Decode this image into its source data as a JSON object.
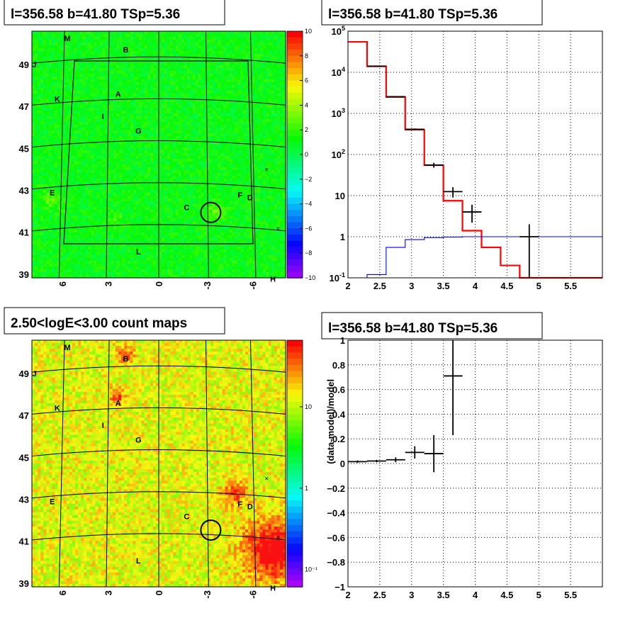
{
  "chart_data": [
    {
      "id": "tsmap",
      "type": "heatmap",
      "title": "l=356.58 b=41.80 TSp=5.36",
      "x_ticks": [
        "6",
        "3",
        "0",
        "-3",
        "-6"
      ],
      "y_ticks": [
        "39",
        "41",
        "43",
        "45",
        "47",
        "49"
      ],
      "colorbar_ticks": [
        "10",
        "8",
        "6",
        "4",
        "2",
        "0",
        "−2",
        "−4",
        "−6",
        "−8",
        "−10"
      ],
      "zlim": [
        -10,
        10
      ],
      "sources": [
        "M",
        "B",
        "J",
        "K",
        "A",
        "I",
        "G",
        "E",
        "F",
        "D",
        "C",
        "L",
        "H"
      ]
    },
    {
      "id": "spectrum",
      "type": "line",
      "title": "l=356.58 b=41.80 TSp=5.36",
      "x_ticks": [
        "2",
        "2.5",
        "3",
        "3.5",
        "4",
        "4.5",
        "5",
        "5.5"
      ],
      "y_ticks": [
        "10^-1",
        "1",
        "10",
        "10^2",
        "10^3",
        "10^4",
        "10^5"
      ],
      "xlim": [
        2,
        6
      ],
      "ylim": [
        0.1,
        100000
      ],
      "y_scale": "log",
      "grid": true,
      "series": [
        {
          "color": "#ff0000",
          "style": "step",
          "edges": [
            2.0,
            2.3,
            2.6,
            2.9,
            3.2,
            3.5,
            3.8,
            4.1,
            4.4,
            4.7,
            5.0,
            5.3,
            5.6,
            6.0
          ],
          "values": [
            55000,
            14000,
            2500,
            400,
            55,
            7.5,
            1.4,
            0.55,
            0.2,
            0.1,
            0.1,
            0.1,
            0.1
          ]
        },
        {
          "color": "#0000ff",
          "style": "step",
          "edges": [
            2.0,
            2.3,
            2.6,
            2.9,
            3.2,
            3.5,
            3.8,
            4.1,
            4.4,
            4.7,
            5.0,
            5.3,
            5.6,
            6.0
          ],
          "values": [
            0.09,
            0.12,
            0.55,
            0.85,
            0.95,
            0.98,
            1.0,
            1.0,
            1.0,
            1.0,
            1.0,
            1.0,
            1.0
          ]
        },
        {
          "color": "#000000",
          "style": "errorbar",
          "points": [
            {
              "x": 2.45,
              "xerr": 0.15,
              "y": 14000,
              "ylo": 13500,
              "yhi": 14500
            },
            {
              "x": 2.75,
              "xerr": 0.15,
              "y": 2550,
              "ylo": 2450,
              "yhi": 2650
            },
            {
              "x": 3.05,
              "xerr": 0.15,
              "y": 410,
              "ylo": 390,
              "yhi": 430
            },
            {
              "x": 3.35,
              "xerr": 0.15,
              "y": 55,
              "ylo": 48,
              "yhi": 63
            },
            {
              "x": 3.65,
              "xerr": 0.15,
              "y": 12.5,
              "ylo": 9,
              "yhi": 16
            },
            {
              "x": 3.95,
              "xerr": 0.15,
              "y": 4,
              "ylo": 2.2,
              "yhi": 6
            },
            {
              "x": 4.85,
              "xerr": 0.15,
              "y": 1,
              "ylo": 0.1,
              "yhi": 2
            }
          ]
        }
      ]
    },
    {
      "id": "countmap",
      "type": "heatmap",
      "title": "2.50<logE<3.00 count maps",
      "x_ticks": [
        "6",
        "3",
        "0",
        "-3",
        "-6"
      ],
      "y_ticks": [
        "39",
        "41",
        "43",
        "45",
        "47",
        "49"
      ],
      "colorbar_ticks": [
        "10",
        "1",
        "10⁻¹"
      ],
      "sources": [
        "M",
        "B",
        "J",
        "K",
        "A",
        "I",
        "G",
        "E",
        "F",
        "D",
        "C",
        "L",
        "H"
      ]
    },
    {
      "id": "residuals",
      "type": "scatter",
      "title": "l=356.58 b=41.80 TSp=5.36",
      "ylabel": "(data-model)/model",
      "x_ticks": [
        "2",
        "2.5",
        "3",
        "3.5",
        "4",
        "4.5",
        "5",
        "5.5"
      ],
      "y_ticks": [
        "1",
        "0.8",
        "0.6",
        "0.4",
        "0.2",
        "0",
        "−0.2",
        "−0.4",
        "−0.6",
        "−0.8",
        "−1"
      ],
      "xlim": [
        2,
        6
      ],
      "ylim": [
        -1,
        1
      ],
      "grid": true,
      "points": [
        {
          "x": 2.15,
          "xerr": 0.15,
          "y": 0.015,
          "ylo": 0.005,
          "yhi": 0.025
        },
        {
          "x": 2.45,
          "xerr": 0.15,
          "y": 0.02,
          "ylo": 0.01,
          "yhi": 0.03
        },
        {
          "x": 2.75,
          "xerr": 0.15,
          "y": 0.03,
          "ylo": 0.01,
          "yhi": 0.05
        },
        {
          "x": 3.05,
          "xerr": 0.15,
          "y": 0.09,
          "ylo": 0.04,
          "yhi": 0.14
        },
        {
          "x": 3.35,
          "xerr": 0.15,
          "y": 0.08,
          "ylo": -0.07,
          "yhi": 0.23
        },
        {
          "x": 3.65,
          "xerr": 0.15,
          "y": 0.71,
          "ylo": 0.23,
          "yhi": 1.0
        }
      ]
    }
  ]
}
